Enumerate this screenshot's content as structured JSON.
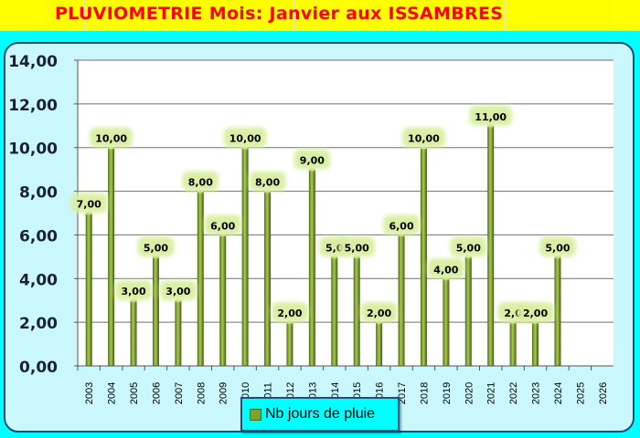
{
  "title": "PLUVIOMETRIE Mois: Janvier aux ISSAMBRES",
  "colors": {
    "title_bar": "#ffff00",
    "title_text": "#ff0000",
    "frame": "#00ffff",
    "panel": "#c9f7fb",
    "bar": "#7da32b",
    "label_glow": "#d8efa0"
  },
  "legend": {
    "label": "Nb jours de pluie",
    "icon": "green-square-swatch"
  },
  "chart_data": {
    "type": "bar",
    "title": "",
    "xlabel": "",
    "ylabel": "",
    "categories": [
      "2003",
      "2004",
      "2005",
      "2006",
      "2007",
      "2008",
      "2009",
      "2010",
      "2011",
      "2012",
      "2013",
      "2014",
      "2015",
      "2016",
      "2017",
      "2018",
      "2019",
      "2020",
      "2021",
      "2022",
      "2023",
      "2024",
      "2025",
      "2026"
    ],
    "series": [
      {
        "name": "Nb jours de pluie",
        "values": [
          7,
          10,
          3,
          5,
          3,
          8,
          6,
          10,
          8,
          2,
          9,
          5,
          5,
          2,
          6,
          10,
          4,
          5,
          11,
          2,
          2,
          5,
          null,
          null
        ],
        "data_labels": [
          "7,00",
          "10,00",
          "3,00",
          "5,00",
          "3,00",
          "8,00",
          "6,00",
          "10,00",
          "8,00",
          "2,00",
          "9,00",
          "5,0",
          "5,00",
          "2,00",
          "6,00",
          "10,00",
          "4,00",
          "5,00",
          "11,00",
          "2,0",
          "2,00",
          "5,00",
          "",
          ""
        ]
      }
    ],
    "ylim": [
      0,
      14
    ],
    "yticks": [
      "0,00",
      "2,00",
      "4,00",
      "6,00",
      "8,00",
      "10,00",
      "12,00",
      "14,00"
    ],
    "grid": true,
    "legend_position": "bottom-center"
  }
}
